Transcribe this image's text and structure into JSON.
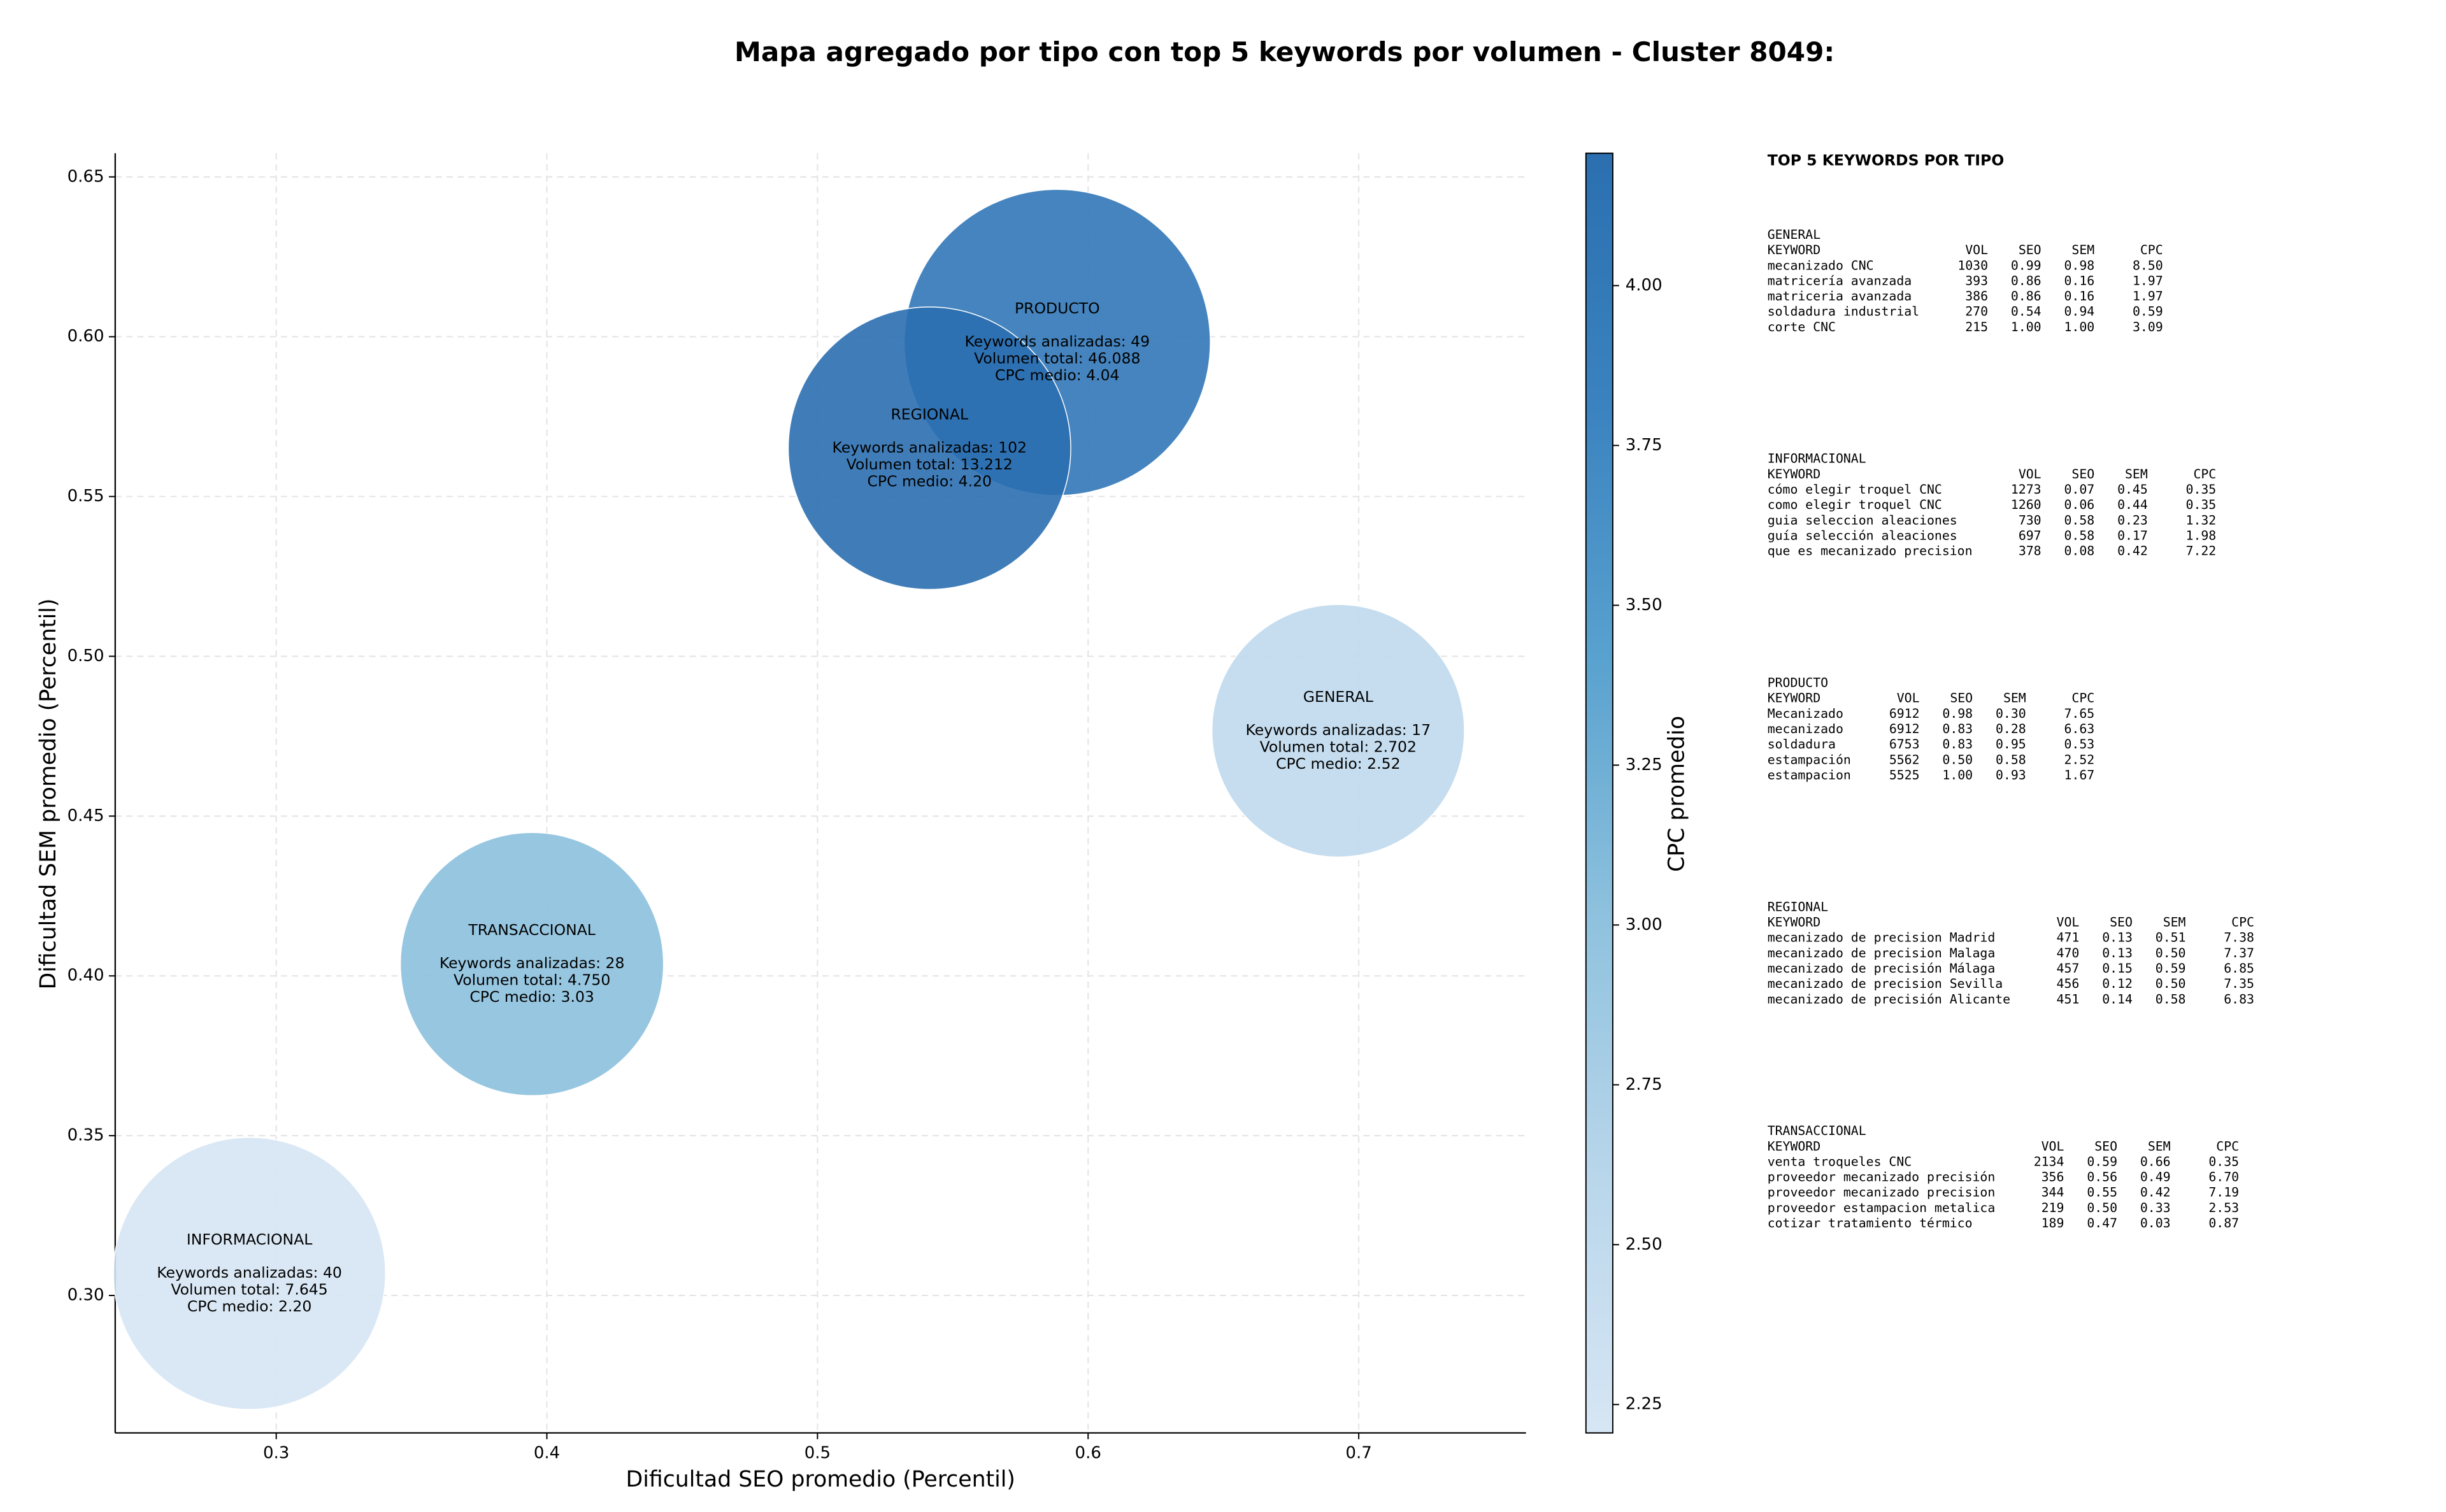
{
  "chart_data": {
    "type": "bubble",
    "title": "Mapa agregado por tipo con top 5 keywords por volumen - Cluster 8049:",
    "xlabel": "Dificultad SEO promedio (Percentil)",
    "ylabel": "Dificultad SEM promedio (Percentil)",
    "xlim": [
      0.2405,
      0.7618
    ],
    "ylim": [
      0.257,
      0.6574
    ],
    "xticks": [
      0.3,
      0.4,
      0.5,
      0.6,
      0.7
    ],
    "yticks": [
      {
        "value": 0.3,
        "label": "0.30"
      },
      {
        "value": 0.35,
        "label": "0.35"
      },
      {
        "value": 0.4,
        "label": "0.40"
      },
      {
        "value": 0.45,
        "label": "0.45"
      },
      {
        "value": 0.5,
        "label": "0.50"
      },
      {
        "value": 0.55,
        "label": "0.55"
      },
      {
        "value": 0.6,
        "label": "0.60"
      },
      {
        "value": 0.65,
        "label": "0.65"
      }
    ],
    "grid": true,
    "alpha": 0.9,
    "points": [
      {
        "name": "GENERAL",
        "x": 0.6924,
        "y": 0.4767,
        "size": 2702,
        "color_value": 2.52,
        "annotation": [
          "Keywords analizadas: 17",
          "Volumen total: 2.702",
          "CPC medio: 2.52"
        ]
      },
      {
        "name": "INFORMACIONAL",
        "x": 0.2901,
        "y": 0.3069,
        "size": 7645,
        "color_value": 2.2,
        "annotation": [
          "Keywords analizadas: 40",
          "Volumen total: 7.645",
          "CPC medio: 2.20"
        ]
      },
      {
        "name": "PRODUCTO",
        "x": 0.5886,
        "y": 0.5982,
        "size": 46088,
        "color_value": 4.04,
        "annotation": [
          "Keywords analizadas: 49",
          "Volumen total: 46.088",
          "CPC medio: 4.04"
        ]
      },
      {
        "name": "REGIONAL",
        "x": 0.5414,
        "y": 0.5651,
        "size": 13212,
        "color_value": 4.2,
        "annotation": [
          "Keywords analizadas: 102",
          "Volumen total: 13.212",
          "CPC medio: 4.20"
        ]
      },
      {
        "name": "TRANSACCIONAL",
        "x": 0.3945,
        "y": 0.4037,
        "size": 4750,
        "color_value": 3.03,
        "annotation": [
          "Keywords analizadas: 28",
          "Volumen total: 4.750",
          "CPC medio: 3.03"
        ]
      }
    ],
    "colorbar": {
      "label": "CPC promedio",
      "clim": [
        2.2056,
        4.207
      ],
      "colormap": [
        "#d6e6f4",
        "#b9d6eb",
        "#8fc2de",
        "#5aa2cf",
        "#3a83c0",
        "#2b6fb0"
      ],
      "ticks": [
        {
          "value": 2.25,
          "label": "2.25"
        },
        {
          "value": 2.5,
          "label": "2.50"
        },
        {
          "value": 2.75,
          "label": "2.75"
        },
        {
          "value": 3.0,
          "label": "3.00"
        },
        {
          "value": 3.25,
          "label": "3.25"
        },
        {
          "value": 3.5,
          "label": "3.50"
        },
        {
          "value": 3.75,
          "label": "3.75"
        },
        {
          "value": 4.0,
          "label": "4.00"
        }
      ]
    }
  },
  "side_panel": {
    "title": "TOP 5 KEYWORDS POR TIPO",
    "sections": [
      {
        "name": "GENERAL",
        "header": [
          "KEYWORD",
          "VOL",
          "SEO",
          "SEM",
          "CPC"
        ],
        "rows": [
          [
            "mecanizado CNC",
            "1030",
            "0.99",
            "0.98",
            "8.50"
          ],
          [
            "matricería avanzada",
            "393",
            "0.86",
            "0.16",
            "1.97"
          ],
          [
            "matriceria avanzada",
            "386",
            "0.86",
            "0.16",
            "1.97"
          ],
          [
            "soldadura industrial",
            "270",
            "0.54",
            "0.94",
            "0.59"
          ],
          [
            "corte CNC",
            "215",
            "1.00",
            "1.00",
            "3.09"
          ]
        ]
      },
      {
        "name": "INFORMACIONAL",
        "header": [
          "KEYWORD",
          "VOL",
          "SEO",
          "SEM",
          "CPC"
        ],
        "rows": [
          [
            "cómo elegir troquel CNC",
            "1273",
            "0.07",
            "0.45",
            "0.35"
          ],
          [
            "como elegir troquel CNC",
            "1260",
            "0.06",
            "0.44",
            "0.35"
          ],
          [
            "guia seleccion aleaciones",
            "730",
            "0.58",
            "0.23",
            "1.32"
          ],
          [
            "guía selección aleaciones",
            "697",
            "0.58",
            "0.17",
            "1.98"
          ],
          [
            "que es mecanizado precision",
            "378",
            "0.08",
            "0.42",
            "7.22"
          ]
        ]
      },
      {
        "name": "PRODUCTO",
        "header": [
          "KEYWORD",
          "VOL",
          "SEO",
          "SEM",
          "CPC"
        ],
        "rows": [
          [
            "Mecanizado",
            "6912",
            "0.98",
            "0.30",
            "7.65"
          ],
          [
            "mecanizado",
            "6912",
            "0.83",
            "0.28",
            "6.63"
          ],
          [
            "soldadura",
            "6753",
            "0.83",
            "0.95",
            "0.53"
          ],
          [
            "estampación",
            "5562",
            "0.50",
            "0.58",
            "2.52"
          ],
          [
            "estampacion",
            "5525",
            "1.00",
            "0.93",
            "1.67"
          ]
        ]
      },
      {
        "name": "REGIONAL",
        "header": [
          "KEYWORD",
          "VOL",
          "SEO",
          "SEM",
          "CPC"
        ],
        "rows": [
          [
            "mecanizado de precision Madrid",
            "471",
            "0.13",
            "0.51",
            "7.38"
          ],
          [
            "mecanizado de precision Malaga",
            "470",
            "0.13",
            "0.50",
            "7.37"
          ],
          [
            "mecanizado de precisión Málaga",
            "457",
            "0.15",
            "0.59",
            "6.85"
          ],
          [
            "mecanizado de precision Sevilla",
            "456",
            "0.12",
            "0.50",
            "7.35"
          ],
          [
            "mecanizado de precisión Alicante",
            "451",
            "0.14",
            "0.58",
            "6.83"
          ]
        ]
      },
      {
        "name": "TRANSACCIONAL",
        "header": [
          "KEYWORD",
          "VOL",
          "SEO",
          "SEM",
          "CPC"
        ],
        "rows": [
          [
            "venta troqueles CNC",
            "2134",
            "0.59",
            "0.66",
            "0.35"
          ],
          [
            "proveedor mecanizado precisión",
            "356",
            "0.56",
            "0.49",
            "6.70"
          ],
          [
            "proveedor mecanizado precision",
            "344",
            "0.55",
            "0.42",
            "7.19"
          ],
          [
            "proveedor estampacion metalica",
            "219",
            "0.50",
            "0.33",
            "2.53"
          ],
          [
            "cotizar tratamiento térmico",
            "189",
            "0.47",
            "0.03",
            "0.87"
          ]
        ]
      }
    ]
  }
}
